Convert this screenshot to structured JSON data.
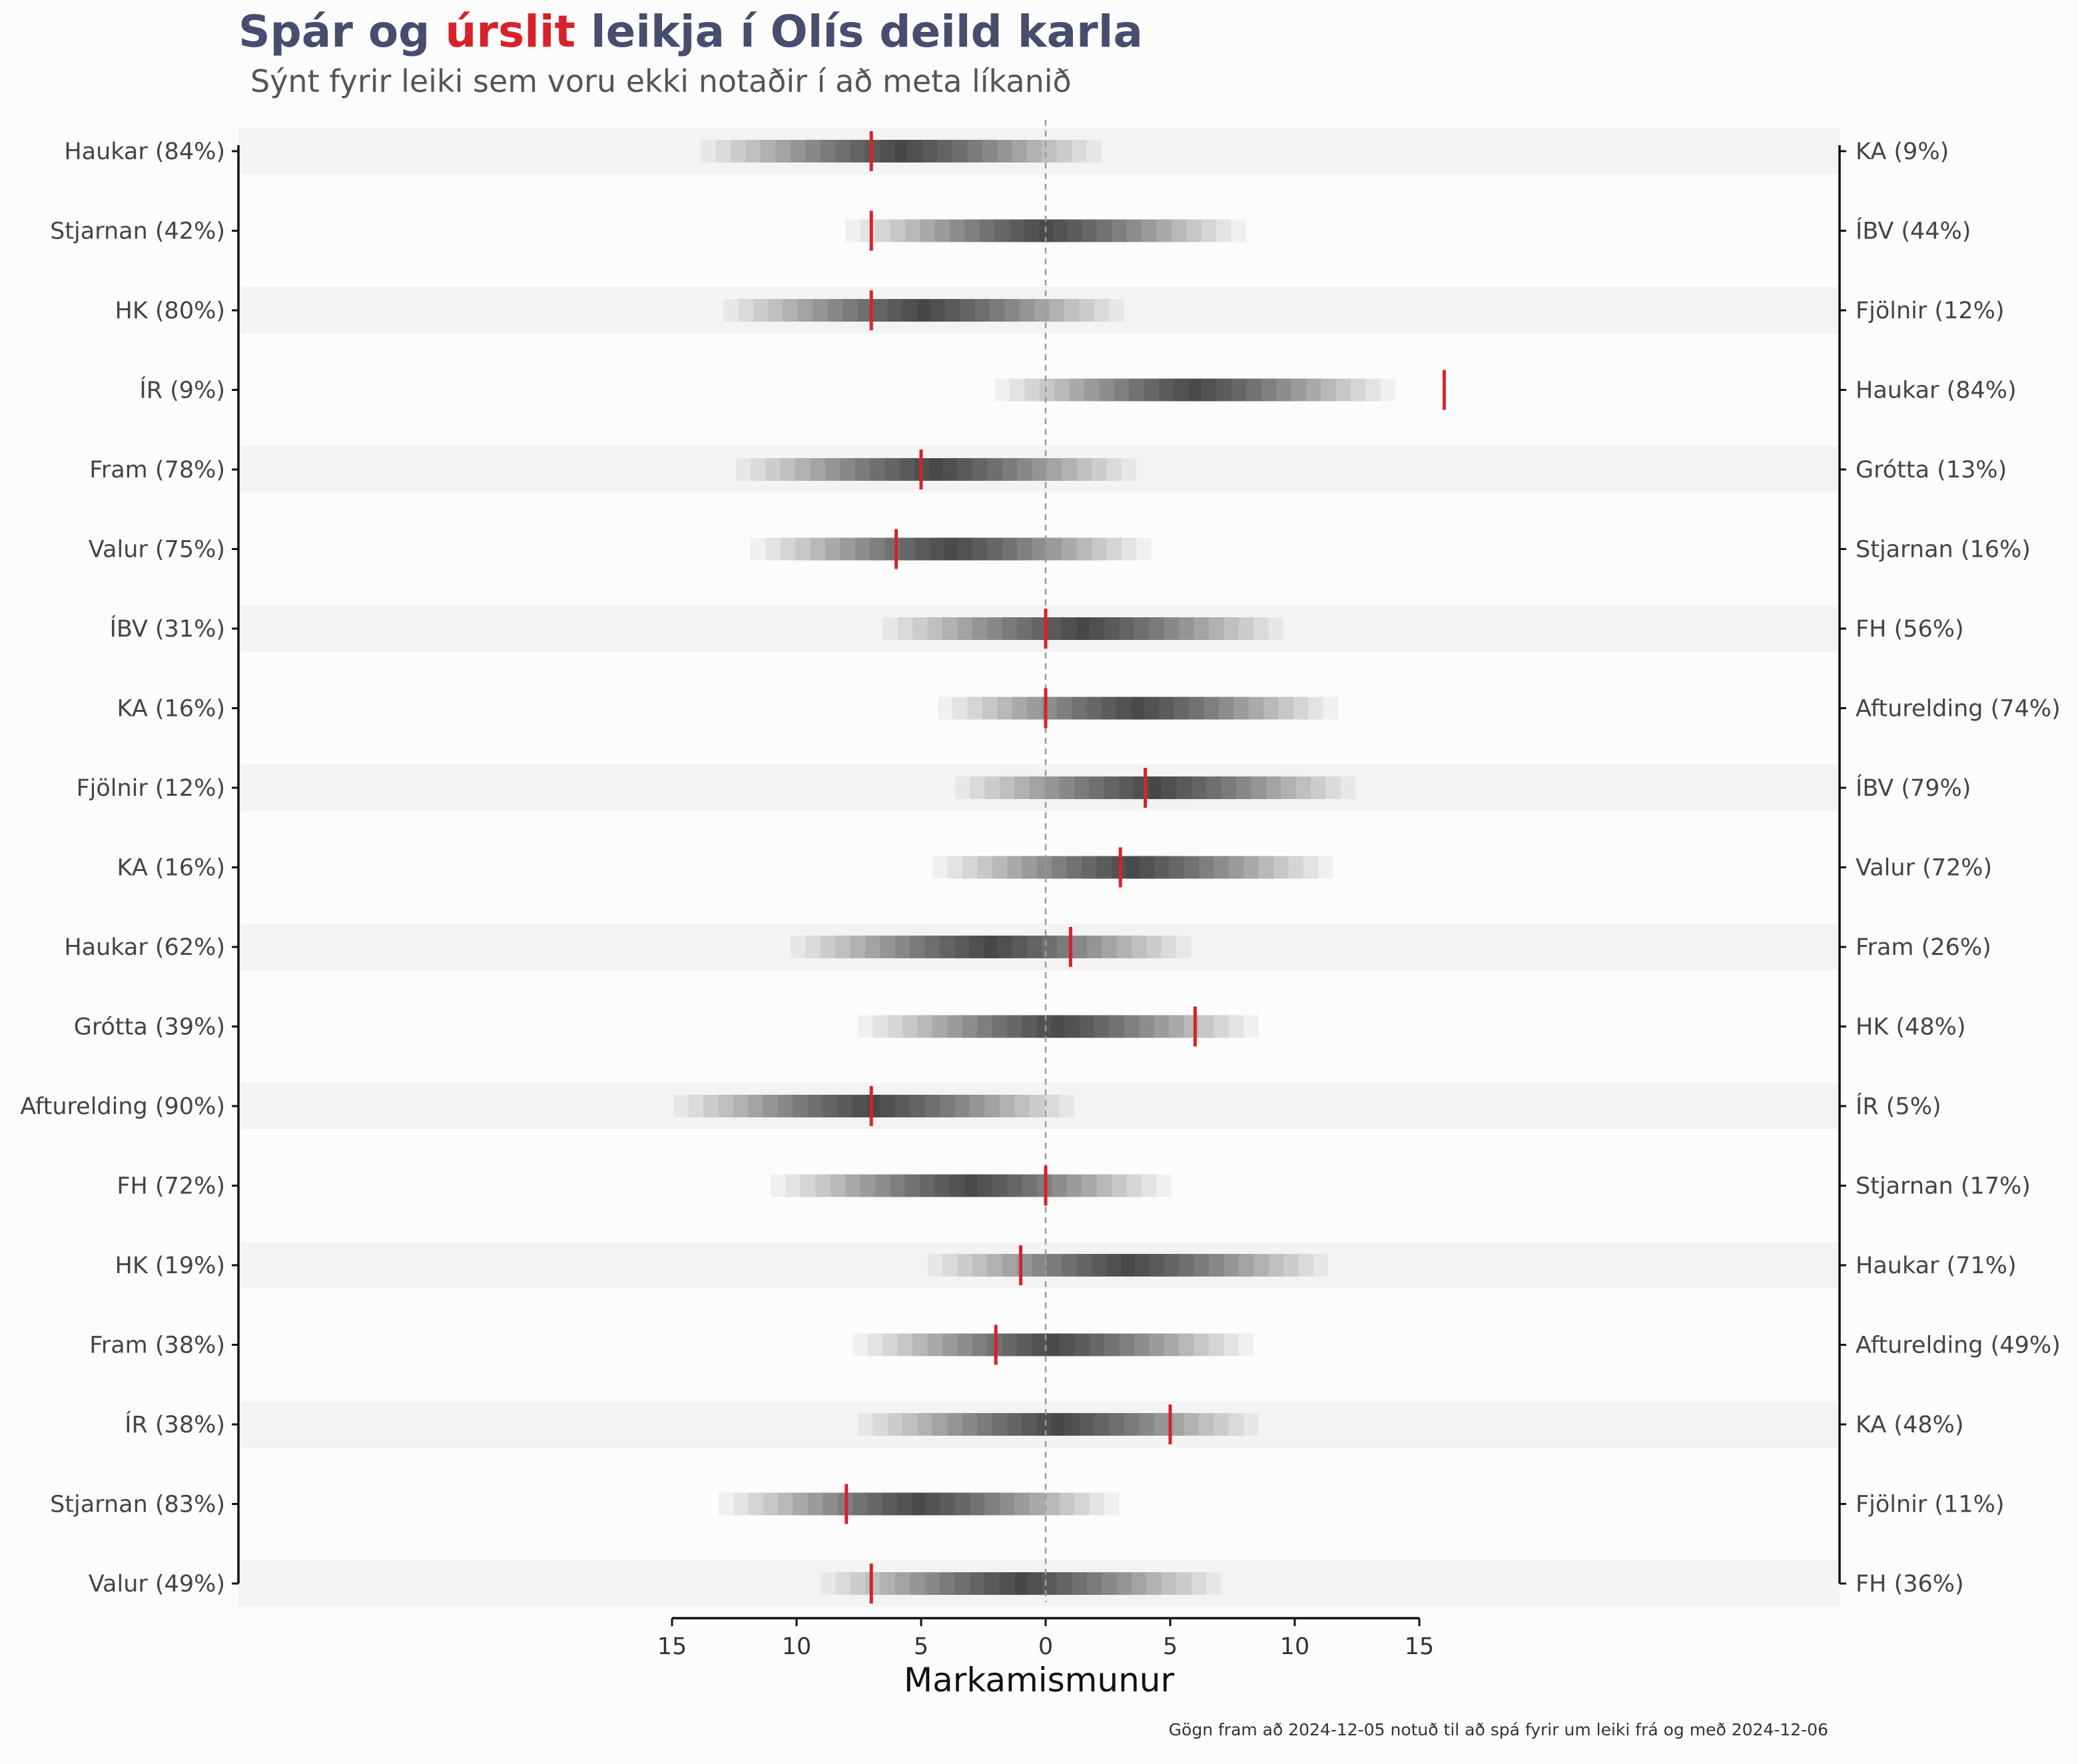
{
  "chart_data": {
    "type": "interval",
    "title_parts": [
      {
        "text": "Spár og ",
        "highlight": false
      },
      {
        "text": "úrslit",
        "highlight": true
      },
      {
        "text": " leikja í Olís deild karla",
        "highlight": false
      }
    ],
    "subtitle": "Sýnt fyrir leiki sem voru ekki notaðir í að meta líkanið",
    "xlabel": "Markamismunur",
    "caption": "Gögn fram að 2024-12-05 notuð til að spá fyrir um leiki frá og með 2024-12-06",
    "x_ticks": [
      {
        "value": -15,
        "label": "15"
      },
      {
        "value": -10,
        "label": "10"
      },
      {
        "value": -5,
        "label": "5"
      },
      {
        "value": 0,
        "label": "0"
      },
      {
        "value": 5,
        "label": "5"
      },
      {
        "value": 10,
        "label": "10"
      },
      {
        "value": 15,
        "label": "15"
      }
    ],
    "xlim": [
      -16.2,
      16.0
    ],
    "colors": {
      "title": "#474d6d",
      "highlight": "#d6222a",
      "result_marker": "#d6222a",
      "band_shade": "#222222",
      "stripe": "#f3f3f3",
      "background": "#fcfcfc"
    },
    "games": [
      {
        "home": "Haukar (84%)",
        "away": "KA (9%)",
        "median": -5.8,
        "spread": 3.6,
        "result": -7
      },
      {
        "home": "Stjarnan (42%)",
        "away": "ÍBV (44%)",
        "median": 0.0,
        "spread": 3.6,
        "result": -7
      },
      {
        "home": "HK (80%)",
        "away": "Fjölnir (12%)",
        "median": -4.9,
        "spread": 3.6,
        "result": -7
      },
      {
        "home": "ÍR (9%)",
        "away": "Haukar (84%)",
        "median": 6.0,
        "spread": 3.6,
        "result": 16
      },
      {
        "home": "Fram (78%)",
        "away": "Grótta (13%)",
        "median": -4.4,
        "spread": 3.6,
        "result": -5
      },
      {
        "home": "Valur (75%)",
        "away": "Stjarnan (16%)",
        "median": -3.8,
        "spread": 3.6,
        "result": -6
      },
      {
        "home": "ÍBV (31%)",
        "away": "FH (56%)",
        "median": 1.5,
        "spread": 3.6,
        "result": 0
      },
      {
        "home": "KA (16%)",
        "away": "Afturelding (74%)",
        "median": 3.7,
        "spread": 3.6,
        "result": 0
      },
      {
        "home": "Fjölnir (12%)",
        "away": "ÍBV (79%)",
        "median": 4.4,
        "spread": 3.6,
        "result": 4
      },
      {
        "home": "KA (16%)",
        "away": "Valur (72%)",
        "median": 3.5,
        "spread": 3.6,
        "result": 3
      },
      {
        "home": "Haukar (62%)",
        "away": "Fram (26%)",
        "median": -2.2,
        "spread": 3.6,
        "result": 1
      },
      {
        "home": "Grótta (39%)",
        "away": "HK (48%)",
        "median": 0.5,
        "spread": 3.6,
        "result": 6
      },
      {
        "home": "Afturelding (90%)",
        "away": "ÍR (5%)",
        "median": -6.9,
        "spread": 3.6,
        "result": -7
      },
      {
        "home": "FH (72%)",
        "away": "Stjarnan (17%)",
        "median": -3.0,
        "spread": 3.6,
        "result": 0
      },
      {
        "home": "HK (19%)",
        "away": "Haukar (71%)",
        "median": 3.3,
        "spread": 3.6,
        "result": -1
      },
      {
        "home": "Fram (38%)",
        "away": "Afturelding (49%)",
        "median": 0.3,
        "spread": 3.6,
        "result": -2
      },
      {
        "home": "ÍR (38%)",
        "away": "KA (48%)",
        "median": 0.5,
        "spread": 3.6,
        "result": 5
      },
      {
        "home": "Stjarnan (83%)",
        "away": "Fjölnir (11%)",
        "median": -5.1,
        "spread": 3.6,
        "result": -8
      },
      {
        "home": "Valur (49%)",
        "away": "FH (36%)",
        "median": -1.0,
        "spread": 3.6,
        "result": -7
      }
    ]
  }
}
